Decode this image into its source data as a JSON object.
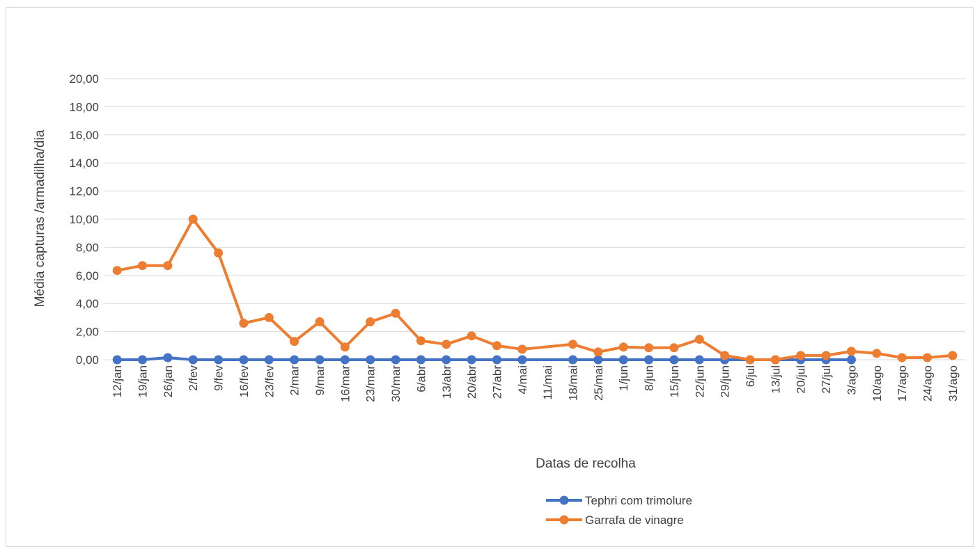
{
  "chart_data": {
    "type": "line",
    "title": "",
    "xlabel": "Datas de recolha",
    "ylabel": "Média capturas /armadilha/dia",
    "ylim": [
      0,
      20
    ],
    "yticks": [
      "0,00",
      "2,00",
      "4,00",
      "6,00",
      "8,00",
      "10,00",
      "12,00",
      "14,00",
      "16,00",
      "18,00",
      "20,00"
    ],
    "grid": true,
    "legend_position": "bottom",
    "categories": [
      "12/jan",
      "19/jan",
      "26/jan",
      "2/fev",
      "9/fev",
      "16/fev",
      "23/fev",
      "2/mar",
      "9/mar",
      "16/mar",
      "23/mar",
      "30/mar",
      "6/abr",
      "13/abr",
      "20/abr",
      "27/abr",
      "4/mai",
      "11/mai",
      "18/mai",
      "25/mai",
      "1/jun",
      "8/jun",
      "15/jun",
      "22/jun",
      "29/jun",
      "6/jul",
      "13/jul",
      "20/jul",
      "27/jul",
      "3/ago",
      "10/ago",
      "17/ago",
      "24/ago",
      "31/ago"
    ],
    "series": [
      {
        "name": "Tephri com trimolure",
        "color": "#4472C4",
        "values": [
          0,
          0,
          0.15,
          0,
          0,
          0,
          0,
          0,
          0,
          0,
          0,
          0,
          0,
          0,
          0,
          0,
          0,
          null,
          0,
          0,
          0,
          0,
          0,
          0,
          0,
          0,
          0,
          0,
          0,
          0,
          null,
          null,
          null,
          null
        ]
      },
      {
        "name": "Garrafa de vinagre",
        "color": "#ED7D31",
        "values": [
          6.35,
          6.7,
          6.7,
          10.0,
          7.6,
          2.6,
          3.0,
          1.3,
          2.7,
          0.9,
          2.7,
          3.3,
          1.35,
          1.1,
          1.7,
          1.0,
          0.75,
          null,
          1.1,
          0.55,
          0.9,
          0.85,
          0.85,
          1.45,
          0.3,
          0.0,
          0.0,
          0.3,
          0.3,
          0.6,
          0.45,
          0.15,
          0.15,
          0.3
        ]
      }
    ]
  }
}
